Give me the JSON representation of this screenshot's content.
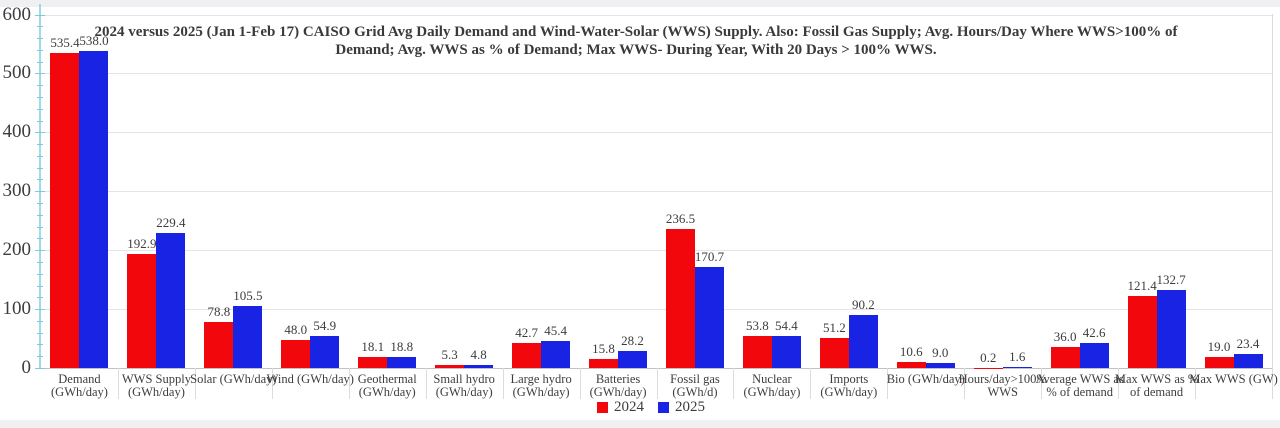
{
  "title": {
    "line1": "2024 versus 2025 (Jan 1-Feb 17) CAISO Grid Avg Daily Demand and Wind-Water-Solar (WWS) Supply. Also: Fossil Gas Supply; Avg. Hours/Day Where WWS>100% of",
    "line2": "Demand; Avg. WWS as % of Demand; Max WWS- During Year, With 20 Days > 100% WWS."
  },
  "chart_data": {
    "type": "bar",
    "title": "2024 versus 2025 (Jan 1-Feb 17) CAISO Grid Avg Daily Demand and Wind-Water-Solar (WWS) Supply. Also: Fossil Gas Supply; Avg. Hours/Day Where WWS>100% of Demand; Avg. WWS as % of Demand; Max WWS- During Year, With 20 Days > 100% WWS.",
    "categories": [
      "Demand\n(GWh/day)",
      "WWS Supply\n(GWh/day)",
      "Solar (GWh/day)",
      "Wind (GWh/day)",
      "Geothermal\n(GWh/day)",
      "Small hydro\n(GWh/day)",
      "Large hydro\n(GWh/day)",
      "Batteries\n(GWh/day)",
      "Fossil gas\n(GWh/d)",
      "Nuclear\n(GWh/day)",
      "Imports\n(GWh/day)",
      "Bio (GWh/day)",
      "Hours/day>100%\nWWS",
      "Average WWS as\n% of demand",
      "Max WWS as %\nof demand",
      "Max WWS (GW)"
    ],
    "series": [
      {
        "name": "2024",
        "color": "#f2080c",
        "values": [
          535.4,
          192.9,
          78.8,
          48.0,
          18.1,
          5.3,
          42.7,
          15.8,
          236.5,
          53.8,
          51.2,
          10.6,
          0.2,
          36.0,
          121.4,
          19.0
        ]
      },
      {
        "name": "2025",
        "color": "#1823e4",
        "values": [
          538.0,
          229.4,
          105.5,
          54.9,
          18.8,
          4.8,
          45.4,
          28.2,
          170.7,
          54.4,
          90.2,
          9.0,
          1.6,
          42.6,
          132.7,
          23.4
        ]
      }
    ],
    "ylim": [
      0,
      600
    ],
    "y_ticks": [
      0,
      100,
      200,
      300,
      400,
      500,
      600
    ],
    "grid": true,
    "legend_position": "bottom",
    "axis_color": "#9fd8e6",
    "gridline_color": "#e4e4e4"
  },
  "legend": {
    "items": [
      {
        "label": "2024",
        "color": "#f2080c"
      },
      {
        "label": "2025",
        "color": "#1823e4"
      }
    ]
  }
}
